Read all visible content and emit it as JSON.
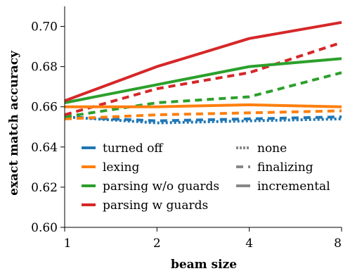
{
  "chart_data": {
    "type": "line",
    "title": "",
    "xlabel": "beam size",
    "ylabel": "exact match accuracy",
    "x_scale": "log2",
    "x": [
      1,
      2,
      4,
      8
    ],
    "x_tick_labels": [
      "1",
      "2",
      "4",
      "8"
    ],
    "ylim": [
      0.6,
      0.71
    ],
    "y_ticks": [
      0.6,
      0.62,
      0.64,
      0.66,
      0.68,
      0.7
    ],
    "y_tick_labels": [
      "0.60",
      "0.62",
      "0.64",
      "0.66",
      "0.68",
      "0.70"
    ],
    "grid": false,
    "legend_position": "bottom-left",
    "color_legend": [
      {
        "label": "turned off",
        "color": "#1f77b4"
      },
      {
        "label": "lexing",
        "color": "#ff7f0e"
      },
      {
        "label": "parsing w/o guards",
        "color": "#2ca02c"
      },
      {
        "label": "parsing w guards",
        "color": "#d62728"
      }
    ],
    "style_legend": [
      {
        "label": "none",
        "style": "dotted"
      },
      {
        "label": "finalizing",
        "style": "dashed"
      },
      {
        "label": "incremental",
        "style": "solid"
      }
    ],
    "series": [
      {
        "color_group": "turned off",
        "style": "dotted",
        "color": "#1f77b4",
        "values": [
          0.655,
          0.652,
          0.653,
          0.654
        ]
      },
      {
        "color_group": "turned off",
        "style": "dashed",
        "color": "#1f77b4",
        "values": [
          0.655,
          0.653,
          0.654,
          0.655
        ]
      },
      {
        "color_group": "lexing",
        "style": "dashed",
        "color": "#ff7f0e",
        "values": [
          0.654,
          0.656,
          0.657,
          0.658
        ]
      },
      {
        "color_group": "lexing",
        "style": "solid",
        "color": "#ff7f0e",
        "values": [
          0.66,
          0.66,
          0.661,
          0.66
        ]
      },
      {
        "color_group": "parsing w/o guards",
        "style": "dashed",
        "color": "#2ca02c",
        "values": [
          0.655,
          0.662,
          0.665,
          0.677
        ]
      },
      {
        "color_group": "parsing w/o guards",
        "style": "solid",
        "color": "#2ca02c",
        "values": [
          0.662,
          0.671,
          0.68,
          0.684
        ]
      },
      {
        "color_group": "parsing w guards",
        "style": "dashed",
        "color": "#d62728",
        "values": [
          0.656,
          0.669,
          0.677,
          0.692
        ]
      },
      {
        "color_group": "parsing w guards",
        "style": "solid",
        "color": "#d62728",
        "values": [
          0.663,
          0.68,
          0.694,
          0.702
        ]
      }
    ]
  }
}
